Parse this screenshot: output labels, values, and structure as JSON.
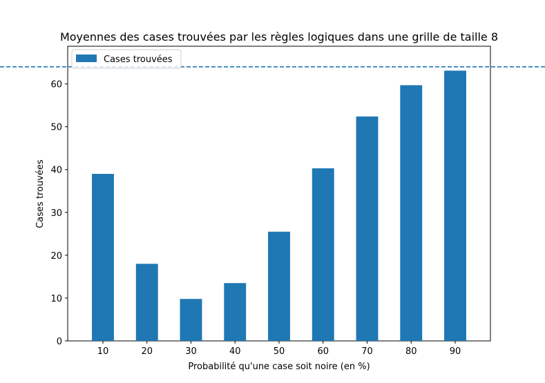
{
  "chart_data": {
    "type": "bar",
    "title": "Moyennes des cases trouvées par les règles logiques dans une grille de taille 8",
    "xlabel": "Probabilité qu'une case soit noire (en %)",
    "ylabel": "Cases trouvées",
    "categories": [
      "10",
      "20",
      "30",
      "40",
      "50",
      "60",
      "70",
      "80",
      "90"
    ],
    "series": [
      {
        "name": "Cases trouvées",
        "values": [
          39.0,
          18.0,
          9.8,
          13.5,
          25.5,
          40.3,
          52.4,
          59.7,
          63.1
        ],
        "color": "#1f77b4"
      }
    ],
    "reference_line": {
      "value": 64,
      "style": "dashed",
      "color": "#1f77b4"
    },
    "ylim": [
      0,
      68.8
    ],
    "yticks": [
      0,
      10,
      20,
      30,
      40,
      50,
      60
    ],
    "grid": false,
    "legend": {
      "position": "top-left",
      "entries": [
        "Cases trouvées"
      ]
    }
  }
}
